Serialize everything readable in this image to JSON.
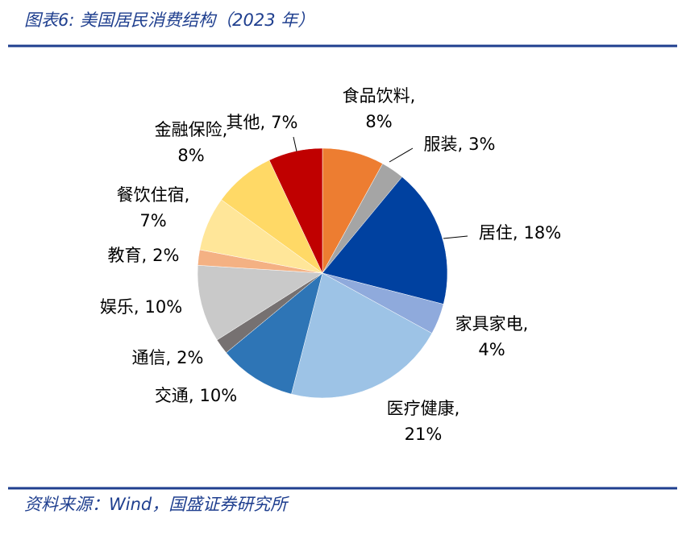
{
  "header": {
    "title": "图表6:  美国居民消费结构（2023 年）"
  },
  "chart_data": {
    "type": "pie",
    "categories": [
      "食品饮料",
      "服装",
      "居住",
      "家具家电",
      "医疗健康",
      "交通",
      "通信",
      "娱乐",
      "教育",
      "餐饮住宿",
      "金融保险",
      "其他"
    ],
    "values": [
      8,
      3,
      18,
      4,
      21,
      10,
      2,
      10,
      2,
      7,
      8,
      7
    ],
    "value_labels": [
      "8%",
      "3%",
      "18%",
      "4%",
      "21%",
      "10%",
      "2%",
      "10%",
      "2%",
      "7%",
      "8%",
      "7%"
    ],
    "label_separator": ",",
    "colors": [
      "#ED7D31",
      "#A5A5A5",
      "#0041A0",
      "#8FAADC",
      "#9DC3E6",
      "#2E75B6",
      "#767171",
      "#C9C9C9",
      "#F4B183",
      "#FFE699",
      "#FFD966",
      "#C00000"
    ]
  },
  "footer": {
    "source": "资料来源：Wind，国盛证券研究所"
  }
}
